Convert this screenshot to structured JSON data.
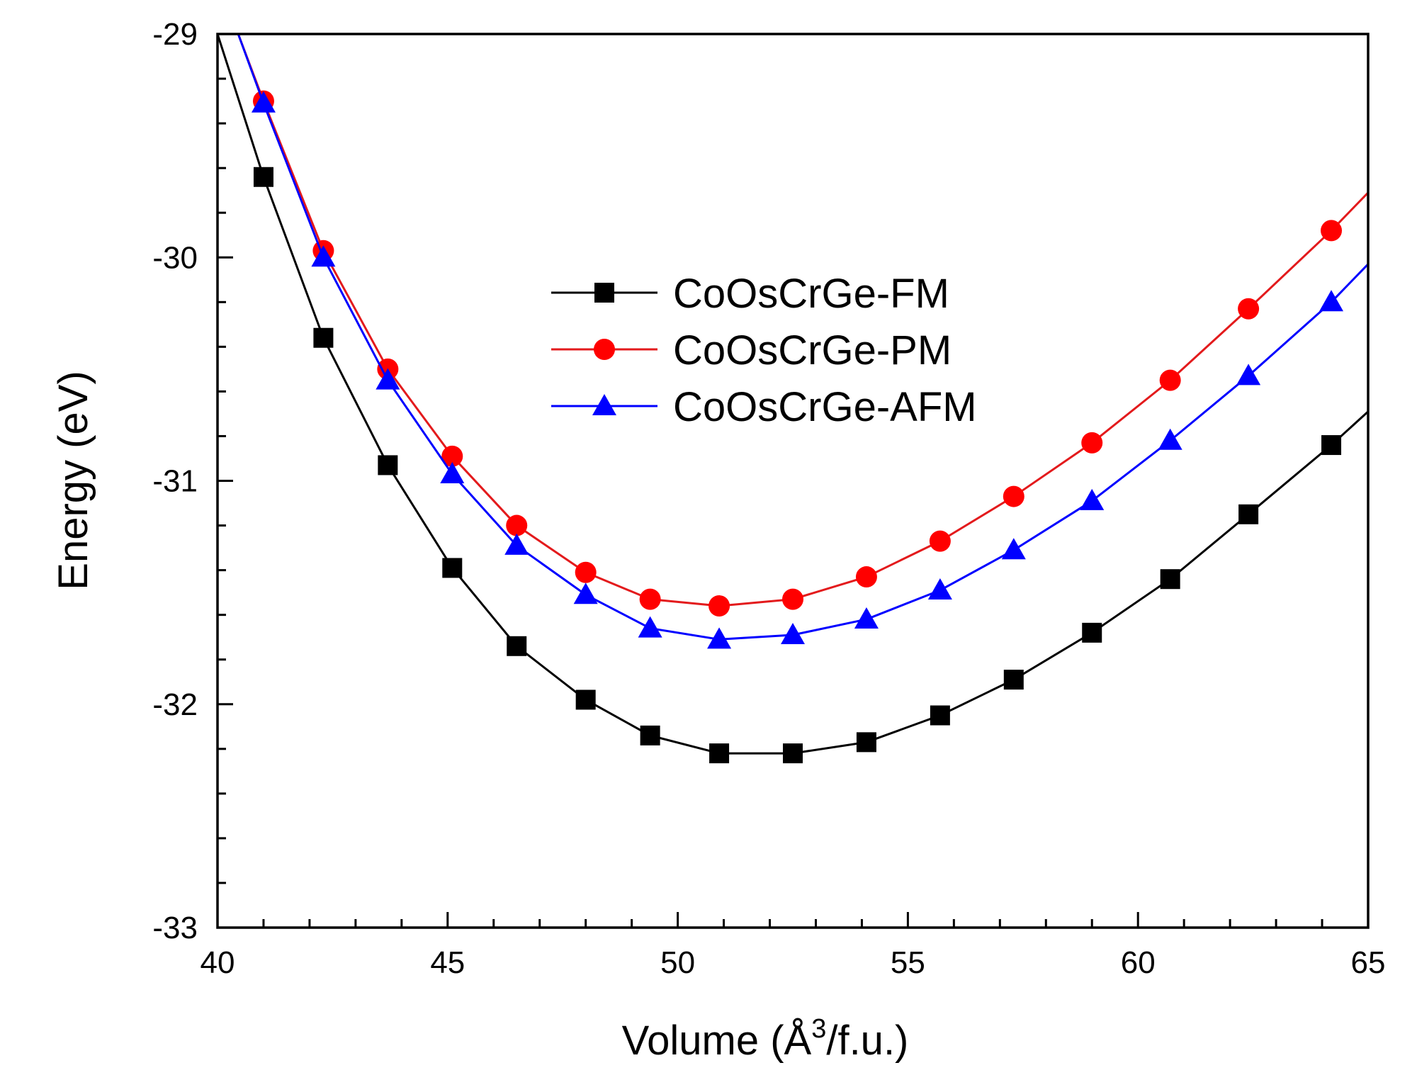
{
  "chart_data": {
    "type": "line",
    "title": "",
    "xlabel_prefix": "Volume (Å",
    "xlabel_sup": "3",
    "xlabel_suffix": "/f.u.)",
    "ylabel": "Energy (eV)",
    "xlim": [
      40,
      65
    ],
    "ylim": [
      -33,
      -29
    ],
    "xticks": [
      40,
      45,
      50,
      55,
      60,
      65
    ],
    "yticks": [
      -33,
      -32,
      -31,
      -30,
      -29
    ],
    "legend_position": "upper-center",
    "x": [
      41.0,
      42.3,
      43.7,
      45.1,
      46.5,
      48.0,
      49.4,
      50.9,
      52.5,
      54.1,
      55.7,
      57.3,
      59.0,
      60.7,
      62.4,
      64.2
    ],
    "series": [
      {
        "name": "CoOsCrGe-FM",
        "color": "#000000",
        "marker": "square",
        "values": [
          -29.64,
          -30.36,
          -30.93,
          -31.39,
          -31.74,
          -31.98,
          -32.14,
          -32.22,
          -32.22,
          -32.17,
          -32.05,
          -31.89,
          -31.68,
          -31.44,
          -31.15,
          -30.84
        ],
        "curve_start": [
          40.0,
          -29.0
        ],
        "curve_end": [
          65.0,
          -30.69
        ]
      },
      {
        "name": "CoOsCrGe-PM",
        "color": "#e31a1c",
        "marker": "circle",
        "values": [
          -29.3,
          -29.97,
          -30.5,
          -30.89,
          -31.2,
          -31.41,
          -31.53,
          -31.56,
          -31.53,
          -31.43,
          -31.27,
          -31.07,
          -30.83,
          -30.55,
          -30.23,
          -29.88
        ],
        "curve_start": [
          40.45,
          -29.0
        ],
        "curve_end": [
          65.0,
          -29.71
        ]
      },
      {
        "name": "CoOsCrGe-AFM",
        "color": "#0000ff",
        "marker": "triangle",
        "values": [
          -29.31,
          -30.0,
          -30.55,
          -30.97,
          -31.29,
          -31.51,
          -31.66,
          -31.71,
          -31.69,
          -31.62,
          -31.49,
          -31.31,
          -31.09,
          -30.82,
          -30.53,
          -30.2
        ],
        "curve_start": [
          40.45,
          -29.0
        ],
        "curve_end": [
          65.0,
          -30.03
        ]
      }
    ]
  }
}
